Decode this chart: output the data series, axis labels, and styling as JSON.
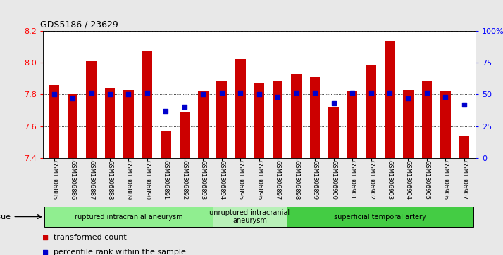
{
  "title": "GDS5186 / 23629",
  "samples": [
    "GSM1306885",
    "GSM1306886",
    "GSM1306887",
    "GSM1306888",
    "GSM1306889",
    "GSM1306890",
    "GSM1306891",
    "GSM1306892",
    "GSM1306893",
    "GSM1306894",
    "GSM1306895",
    "GSM1306896",
    "GSM1306897",
    "GSM1306898",
    "GSM1306899",
    "GSM1306900",
    "GSM1306901",
    "GSM1306902",
    "GSM1306903",
    "GSM1306904",
    "GSM1306905",
    "GSM1306906",
    "GSM1306907"
  ],
  "transformed_count": [
    7.86,
    7.8,
    8.01,
    7.84,
    7.83,
    8.07,
    7.57,
    7.69,
    7.82,
    7.88,
    8.02,
    7.87,
    7.88,
    7.93,
    7.91,
    7.72,
    7.82,
    7.98,
    8.13,
    7.83,
    7.88,
    7.82,
    7.54
  ],
  "percentile_rank": [
    50,
    47,
    51,
    50,
    50,
    51,
    37,
    40,
    50,
    51,
    51,
    50,
    48,
    51,
    51,
    43,
    51,
    51,
    51,
    47,
    51,
    48,
    42
  ],
  "bar_color": "#cc0000",
  "dot_color": "#0000cc",
  "ylim_left": [
    7.4,
    8.2
  ],
  "ylim_right": [
    0,
    100
  ],
  "yticks_left": [
    7.4,
    7.6,
    7.8,
    8.0,
    8.2
  ],
  "yticks_right": [
    0,
    25,
    50,
    75,
    100
  ],
  "ytick_labels_right": [
    "0",
    "25",
    "50",
    "75",
    "100%"
  ],
  "group_ranges": [
    [
      0,
      8,
      "ruptured intracranial aneurysm",
      "#90ee90"
    ],
    [
      9,
      12,
      "unruptured intracranial\naneurysm",
      "#b8f0b8"
    ],
    [
      13,
      22,
      "superficial temporal artery",
      "#44cc44"
    ]
  ],
  "fig_bg": "#e8e8e8",
  "plot_bg": "#ffffff"
}
